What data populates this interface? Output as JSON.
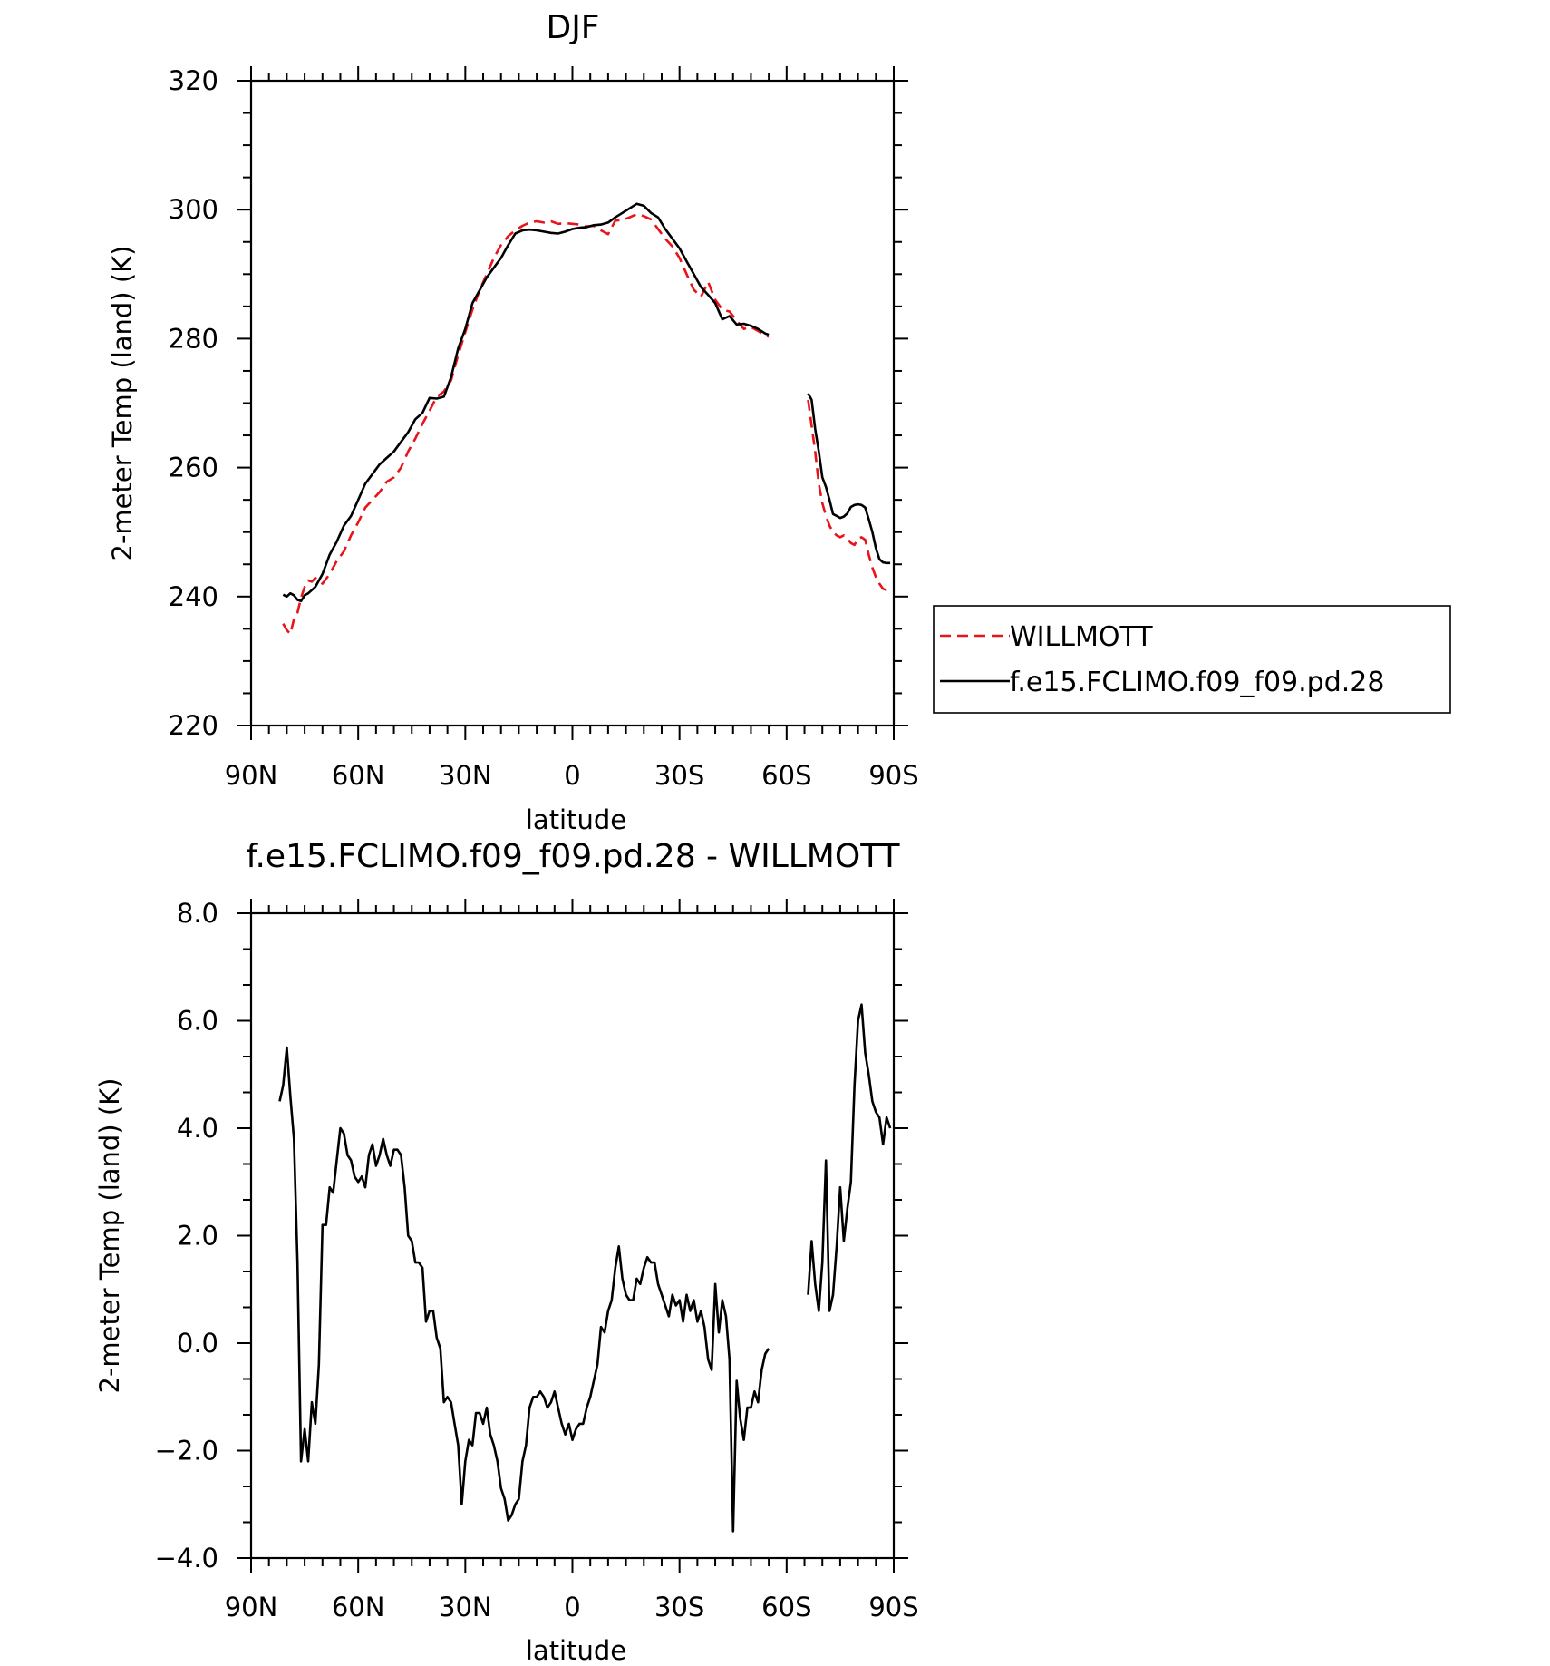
{
  "chart_data": [
    {
      "type": "line",
      "title": "DJF",
      "xlabel": "latitude",
      "ylabel": "2-meter Temp (land) (K)",
      "xlim": [
        90,
        -90
      ],
      "ylim": [
        220,
        320
      ],
      "x_ticks": [
        90,
        60,
        30,
        0,
        -30,
        -60,
        -90
      ],
      "x_tick_labels": [
        "90N",
        "60N",
        "30N",
        "0",
        "30S",
        "60S",
        "90S"
      ],
      "y_ticks": [
        220,
        240,
        260,
        280,
        300,
        320
      ],
      "y_tick_labels": [
        "220",
        "240",
        "260",
        "280",
        "300",
        "320"
      ],
      "grid": false,
      "legend_position": "right",
      "series": [
        {
          "name": "WILLMOTT",
          "color": "#e8141a",
          "dash": "dashed",
          "x": [
            81,
            80,
            79,
            78,
            77,
            76,
            75,
            74,
            73,
            72,
            70,
            68,
            66,
            64,
            62,
            60,
            58,
            56,
            54,
            52,
            50,
            48,
            46,
            44,
            42,
            40,
            38,
            36,
            34,
            32,
            30,
            28,
            26,
            24,
            22,
            20,
            18,
            16,
            14,
            12,
            10,
            8,
            6,
            4,
            2,
            0,
            -2,
            -4,
            -6,
            -8,
            -10,
            -12,
            -14,
            -16,
            -18,
            -20,
            -22,
            -24,
            -26,
            -28,
            -30,
            -32,
            -34,
            -36,
            -38,
            -40,
            -42,
            -44,
            -46,
            -48,
            -50,
            -52,
            -54,
            -55
          ],
          "y": [
            235.8,
            234.8,
            234.2,
            236.5,
            237.5,
            239.8,
            241.5,
            242.5,
            242.3,
            242.9,
            242.0,
            243.5,
            245.5,
            247.0,
            249.5,
            251.5,
            253.8,
            255.0,
            256.2,
            257.8,
            258.5,
            260.0,
            262.5,
            264.5,
            266.8,
            268.8,
            271.0,
            271.8,
            273.5,
            277.5,
            281.0,
            284.5,
            287.5,
            290.0,
            292.5,
            294.5,
            295.9,
            296.8,
            297.5,
            298.0,
            298.2,
            298.0,
            298.2,
            297.8,
            297.9,
            297.8,
            297.7,
            297.4,
            297.5,
            296.8,
            296.2,
            298.3,
            298.4,
            298.8,
            299.3,
            299.0,
            298.5,
            297.0,
            295.5,
            294.3,
            292.5,
            290.0,
            287.6,
            286.5,
            288.8,
            286.0,
            284.5,
            284.2,
            282.8,
            281.5,
            281.8,
            281.2,
            280.5,
            280.3
          ],
          "segment2_x": [
            -66,
            -67,
            -68,
            -69,
            -70,
            -71,
            -72,
            -73,
            -74,
            -75,
            -76,
            -77,
            -78,
            -79,
            -80,
            -81,
            -82,
            -83,
            -84,
            -85,
            -86,
            -87,
            -88,
            -89
          ],
          "segment2_y": [
            270.5,
            266.5,
            262.5,
            257.5,
            254.5,
            252.5,
            251.0,
            250.0,
            249.5,
            249.2,
            249.5,
            249.0,
            248.3,
            248.0,
            249.0,
            249.2,
            248.8,
            246.5,
            244.5,
            243.0,
            242.0,
            241.2,
            241.0,
            241.0
          ]
        },
        {
          "name": "f.e15.FCLIMO.f09_f09.pd.28",
          "color": "#000000",
          "dash": "solid",
          "x": [
            81,
            80,
            79,
            78,
            77,
            76,
            75,
            74,
            73,
            72,
            70,
            68,
            66,
            64,
            62,
            60,
            58,
            56,
            54,
            52,
            50,
            48,
            46,
            44,
            42,
            40,
            38,
            36,
            34,
            32,
            30,
            28,
            26,
            24,
            22,
            20,
            18,
            16,
            14,
            12,
            10,
            8,
            6,
            4,
            2,
            0,
            -2,
            -4,
            -6,
            -8,
            -10,
            -12,
            -14,
            -16,
            -18,
            -20,
            -22,
            -24,
            -26,
            -28,
            -30,
            -32,
            -34,
            -36,
            -38,
            -40,
            -42,
            -44,
            -46,
            -48,
            -50,
            -52,
            -54,
            -55
          ],
          "y": [
            240.3,
            240.0,
            240.5,
            240.2,
            239.5,
            239.3,
            240.2,
            240.5,
            241.0,
            241.5,
            243.5,
            246.5,
            248.5,
            251.0,
            252.5,
            255.0,
            257.5,
            259.0,
            260.5,
            261.5,
            262.5,
            264.0,
            265.5,
            267.5,
            268.5,
            270.8,
            270.7,
            271.0,
            274.0,
            278.5,
            281.5,
            285.5,
            287.5,
            289.5,
            291.0,
            292.5,
            294.5,
            296.3,
            296.8,
            296.9,
            296.8,
            296.6,
            296.4,
            296.3,
            296.6,
            297.0,
            297.2,
            297.3,
            297.6,
            297.7,
            298.0,
            298.8,
            299.5,
            300.2,
            300.9,
            300.6,
            299.5,
            298.8,
            297.0,
            295.5,
            294.0,
            292.0,
            290.0,
            288.0,
            286.8,
            285.5,
            283.0,
            283.5,
            282.2,
            282.3,
            282.0,
            281.5,
            280.8,
            280.6
          ],
          "segment2_x": [
            -66,
            -67,
            -68,
            -69,
            -70,
            -71,
            -72,
            -73,
            -74,
            -75,
            -76,
            -77,
            -78,
            -79,
            -80,
            -81,
            -82,
            -83,
            -84,
            -85,
            -86,
            -87,
            -88,
            -89
          ],
          "segment2_y": [
            271.5,
            270.5,
            266.0,
            262.5,
            258.5,
            257.0,
            255.0,
            252.8,
            252.5,
            252.2,
            252.4,
            252.9,
            253.9,
            254.2,
            254.3,
            254.2,
            253.8,
            252.0,
            250.0,
            247.5,
            245.8,
            245.3,
            245.2,
            245.2
          ]
        }
      ]
    },
    {
      "type": "line",
      "title": "f.e15.FCLIMO.f09_f09.pd.28 - WILLMOTT",
      "xlabel": "latitude",
      "ylabel": "2-meter Temp (land) (K)",
      "xlim": [
        90,
        -90
      ],
      "ylim": [
        -4.0,
        8.0
      ],
      "x_ticks": [
        90,
        60,
        30,
        0,
        -30,
        -60,
        -90
      ],
      "x_tick_labels": [
        "90N",
        "60N",
        "30N",
        "0",
        "30S",
        "60S",
        "90S"
      ],
      "y_ticks": [
        -4.0,
        -2.0,
        0.0,
        2.0,
        4.0,
        6.0,
        8.0
      ],
      "y_tick_labels": [
        "−4.0",
        "−2.0",
        "0.0",
        "2.0",
        "4.0",
        "6.0",
        "8.0"
      ],
      "grid": false,
      "series": [
        {
          "color": "#000000",
          "dash": "solid",
          "x": [
            82,
            81,
            80,
            79,
            78,
            77,
            76,
            75,
            74,
            73,
            72,
            71,
            70,
            69,
            68,
            67,
            66,
            65,
            64,
            63,
            62,
            61,
            60,
            59,
            58,
            57,
            56,
            55,
            54,
            53,
            52,
            51,
            50,
            49,
            48,
            47,
            46,
            45,
            44,
            43,
            42,
            41,
            40,
            39,
            38,
            37,
            36,
            35,
            34,
            33,
            32,
            31,
            30,
            29,
            28,
            27,
            26,
            25,
            24,
            23,
            22,
            21,
            20,
            19,
            18,
            17,
            16,
            15,
            14,
            13,
            12,
            11,
            10,
            9,
            8,
            7,
            6,
            5,
            4,
            3,
            2,
            1,
            0,
            -1,
            -2,
            -3,
            -4,
            -5,
            -6,
            -7,
            -8,
            -9,
            -10,
            -11,
            -12,
            -13,
            -14,
            -15,
            -16,
            -17,
            -18,
            -19,
            -20,
            -21,
            -22,
            -23,
            -24,
            -25,
            -26,
            -27,
            -28,
            -29,
            -30,
            -31,
            -32,
            -33,
            -34,
            -35,
            -36,
            -37,
            -38,
            -39,
            -40,
            -41,
            -42,
            -43,
            -44,
            -45,
            -46,
            -47,
            -48,
            -49,
            -50,
            -51,
            -52,
            -53,
            -54,
            -55
          ],
          "y": [
            4.5,
            4.8,
            5.5,
            4.6,
            3.8,
            1.5,
            -2.2,
            -1.6,
            -2.2,
            -1.1,
            -1.5,
            -0.4,
            2.2,
            2.2,
            2.9,
            2.8,
            3.4,
            4.0,
            3.9,
            3.5,
            3.4,
            3.1,
            3.0,
            3.1,
            2.9,
            3.5,
            3.7,
            3.3,
            3.5,
            3.8,
            3.5,
            3.3,
            3.6,
            3.6,
            3.5,
            2.9,
            2.0,
            1.9,
            1.5,
            1.5,
            1.4,
            0.4,
            0.6,
            0.6,
            0.1,
            -0.1,
            -1.1,
            -1.0,
            -1.1,
            -1.5,
            -1.9,
            -3.0,
            -2.2,
            -1.8,
            -1.9,
            -1.3,
            -1.3,
            -1.5,
            -1.2,
            -1.7,
            -1.9,
            -2.2,
            -2.7,
            -2.9,
            -3.3,
            -3.2,
            -3.0,
            -2.9,
            -2.2,
            -1.9,
            -1.2,
            -1.0,
            -1.0,
            -0.9,
            -1.0,
            -1.2,
            -1.1,
            -0.9,
            -1.2,
            -1.5,
            -1.7,
            -1.5,
            -1.8,
            -1.6,
            -1.5,
            -1.5,
            -1.2,
            -1.0,
            -0.7,
            -0.4,
            0.3,
            0.2,
            0.6,
            0.8,
            1.4,
            1.8,
            1.2,
            0.9,
            0.8,
            0.8,
            1.2,
            1.1,
            1.4,
            1.6,
            1.5,
            1.5,
            1.1,
            0.9,
            0.7,
            0.5,
            0.9,
            0.7,
            0.8,
            0.4,
            0.9,
            0.6,
            0.8,
            0.4,
            0.6,
            0.3,
            -0.3,
            -0.5,
            1.1,
            0.2,
            0.8,
            0.5,
            -0.3,
            -3.5,
            -0.7,
            -1.4,
            -1.8,
            -1.2,
            -1.2,
            -0.9,
            -1.1,
            -0.5,
            -0.2,
            -0.1
          ],
          "segment2_x": [
            -66,
            -67,
            -68,
            -69,
            -70,
            -71,
            -72,
            -73,
            -74,
            -75,
            -76,
            -77,
            -78,
            -79,
            -80,
            -81,
            -82,
            -83,
            -84,
            -85,
            -86,
            -87,
            -88,
            -89
          ],
          "segment2_y": [
            0.9,
            1.9,
            1.1,
            0.6,
            1.5,
            3.4,
            0.6,
            0.9,
            1.8,
            2.9,
            1.9,
            2.5,
            3.0,
            4.8,
            6.0,
            6.3,
            5.4,
            5.0,
            4.5,
            4.3,
            4.2,
            3.7,
            4.2,
            4.0
          ]
        }
      ]
    }
  ]
}
